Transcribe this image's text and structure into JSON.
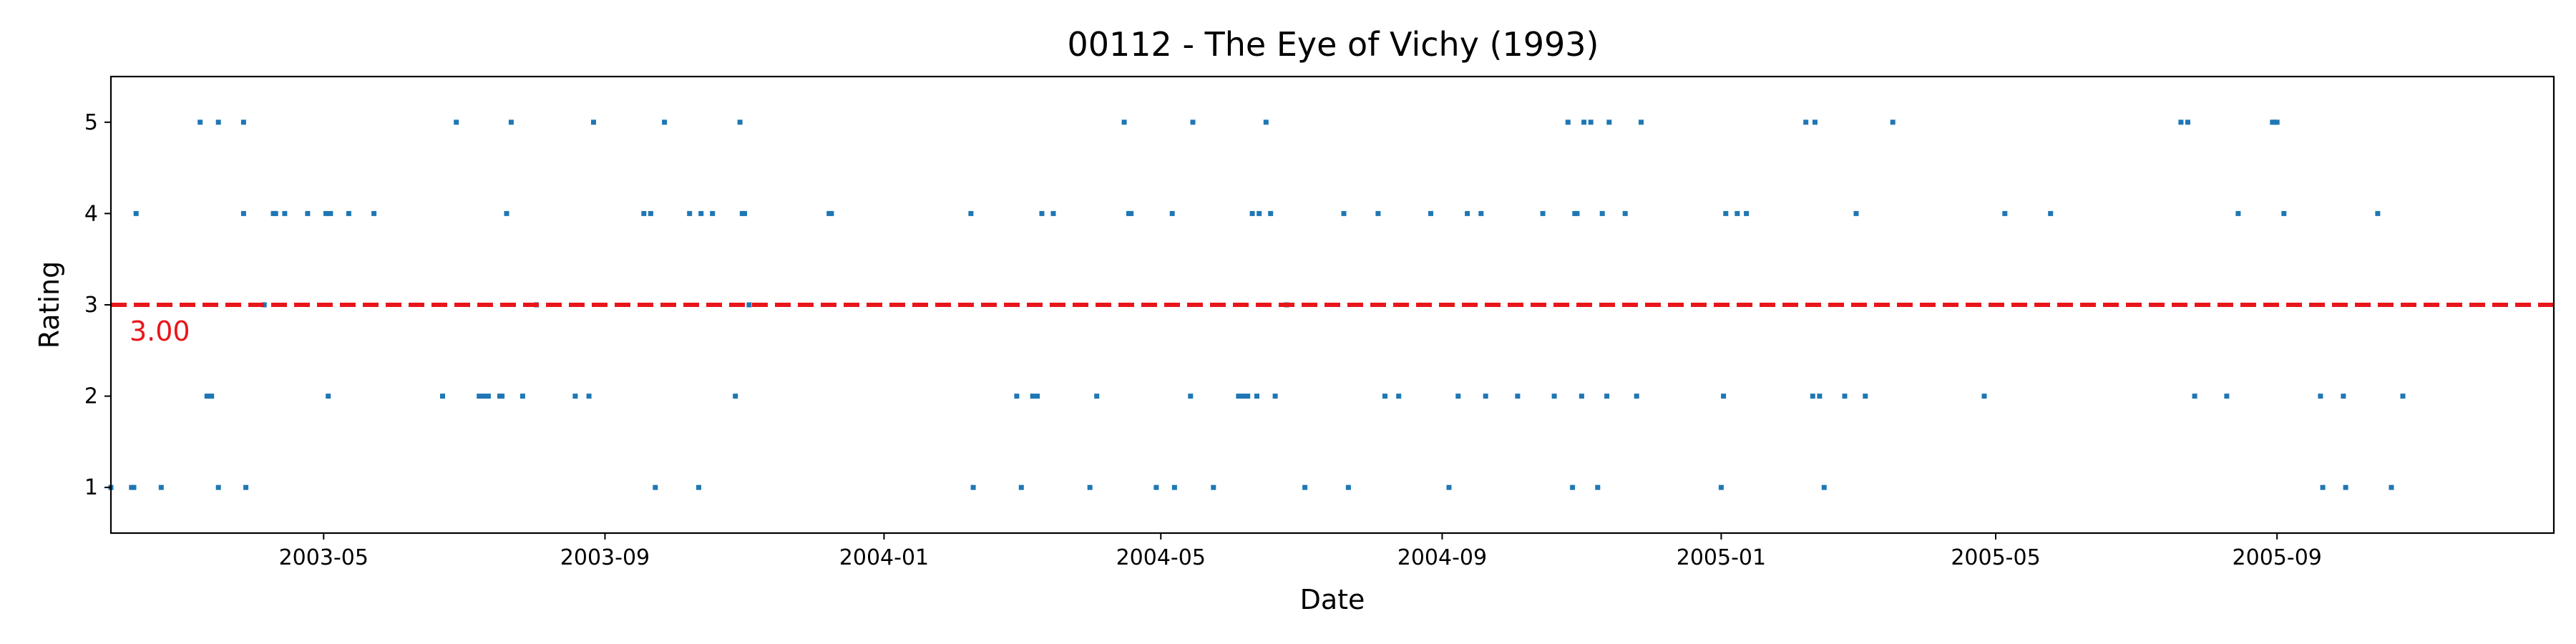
{
  "chart_data": {
    "type": "scatter",
    "title": "00112 - The Eye of Vichy (1993)",
    "xlabel": "Date",
    "ylabel": "Rating",
    "xlim": [
      "2003-01-28",
      "2005-12-31"
    ],
    "ylim": [
      0.5,
      5.5
    ],
    "x_ticks": [
      "2003-05-01",
      "2003-09-01",
      "2004-01-01",
      "2004-05-01",
      "2004-09-01",
      "2005-01-01",
      "2005-05-01",
      "2005-09-01"
    ],
    "x_tick_labels": [
      "2003-05",
      "2003-09",
      "2004-01",
      "2004-05",
      "2004-09",
      "2005-01",
      "2005-05",
      "2005-09"
    ],
    "y_ticks": [
      1,
      2,
      3,
      4,
      5
    ],
    "y_tick_labels": [
      "1",
      "2",
      "3",
      "4",
      "5"
    ],
    "grid": false,
    "point_color": "#1f77b4",
    "reference_line": {
      "y": 3.0,
      "label": "3.00",
      "color": "#e8161b",
      "style": "dashed"
    },
    "points": [
      {
        "x": "2003-01-28",
        "y": 1
      },
      {
        "x": "2003-02-06",
        "y": 1
      },
      {
        "x": "2003-02-07",
        "y": 1
      },
      {
        "x": "2003-02-08",
        "y": 4
      },
      {
        "x": "2003-02-19",
        "y": 1
      },
      {
        "x": "2003-03-08",
        "y": 5
      },
      {
        "x": "2003-03-11",
        "y": 2
      },
      {
        "x": "2003-03-12",
        "y": 2
      },
      {
        "x": "2003-03-13",
        "y": 2
      },
      {
        "x": "2003-03-16",
        "y": 1
      },
      {
        "x": "2003-03-16",
        "y": 5
      },
      {
        "x": "2003-03-27",
        "y": 5
      },
      {
        "x": "2003-03-27",
        "y": 4
      },
      {
        "x": "2003-03-28",
        "y": 1
      },
      {
        "x": "2003-04-05",
        "y": 3
      },
      {
        "x": "2003-04-09",
        "y": 4
      },
      {
        "x": "2003-04-10",
        "y": 4
      },
      {
        "x": "2003-04-14",
        "y": 4
      },
      {
        "x": "2003-04-24",
        "y": 4
      },
      {
        "x": "2003-05-02",
        "y": 4
      },
      {
        "x": "2003-05-03",
        "y": 2
      },
      {
        "x": "2003-05-04",
        "y": 4
      },
      {
        "x": "2003-05-12",
        "y": 4
      },
      {
        "x": "2003-05-23",
        "y": 4
      },
      {
        "x": "2003-06-22",
        "y": 2
      },
      {
        "x": "2003-06-28",
        "y": 5
      },
      {
        "x": "2003-07-08",
        "y": 2
      },
      {
        "x": "2003-07-10",
        "y": 2
      },
      {
        "x": "2003-07-12",
        "y": 2
      },
      {
        "x": "2003-07-17",
        "y": 2
      },
      {
        "x": "2003-07-18",
        "y": 2
      },
      {
        "x": "2003-07-20",
        "y": 4
      },
      {
        "x": "2003-07-22",
        "y": 5
      },
      {
        "x": "2003-07-27",
        "y": 2
      },
      {
        "x": "2003-08-02",
        "y": 3
      },
      {
        "x": "2003-08-19",
        "y": 2
      },
      {
        "x": "2003-08-25",
        "y": 2
      },
      {
        "x": "2003-08-27",
        "y": 5
      },
      {
        "x": "2003-09-18",
        "y": 4
      },
      {
        "x": "2003-09-21",
        "y": 4
      },
      {
        "x": "2003-09-23",
        "y": 1
      },
      {
        "x": "2003-09-27",
        "y": 5
      },
      {
        "x": "2003-10-08",
        "y": 4
      },
      {
        "x": "2003-10-12",
        "y": 1
      },
      {
        "x": "2003-10-13",
        "y": 4
      },
      {
        "x": "2003-10-18",
        "y": 4
      },
      {
        "x": "2003-10-28",
        "y": 2
      },
      {
        "x": "2003-10-30",
        "y": 5
      },
      {
        "x": "2003-10-31",
        "y": 4
      },
      {
        "x": "2003-11-01",
        "y": 4
      },
      {
        "x": "2003-11-03",
        "y": 3
      },
      {
        "x": "2003-12-08",
        "y": 4
      },
      {
        "x": "2003-12-09",
        "y": 4
      },
      {
        "x": "2004-02-08",
        "y": 4
      },
      {
        "x": "2004-02-09",
        "y": 1
      },
      {
        "x": "2004-02-28",
        "y": 2
      },
      {
        "x": "2004-03-01",
        "y": 1
      },
      {
        "x": "2004-03-06",
        "y": 2
      },
      {
        "x": "2004-03-08",
        "y": 2
      },
      {
        "x": "2004-03-10",
        "y": 4
      },
      {
        "x": "2004-03-15",
        "y": 4
      },
      {
        "x": "2004-03-31",
        "y": 1
      },
      {
        "x": "2004-04-03",
        "y": 2
      },
      {
        "x": "2004-04-15",
        "y": 5
      },
      {
        "x": "2004-04-17",
        "y": 4
      },
      {
        "x": "2004-04-18",
        "y": 4
      },
      {
        "x": "2004-04-29",
        "y": 1
      },
      {
        "x": "2004-05-06",
        "y": 4
      },
      {
        "x": "2004-05-07",
        "y": 1
      },
      {
        "x": "2004-05-14",
        "y": 2
      },
      {
        "x": "2004-05-15",
        "y": 5
      },
      {
        "x": "2004-05-24",
        "y": 1
      },
      {
        "x": "2004-06-04",
        "y": 2
      },
      {
        "x": "2004-06-06",
        "y": 2
      },
      {
        "x": "2004-06-08",
        "y": 2
      },
      {
        "x": "2004-06-10",
        "y": 4
      },
      {
        "x": "2004-06-12",
        "y": 2
      },
      {
        "x": "2004-06-13",
        "y": 4
      },
      {
        "x": "2004-06-16",
        "y": 5
      },
      {
        "x": "2004-06-18",
        "y": 4
      },
      {
        "x": "2004-06-20",
        "y": 2
      },
      {
        "x": "2004-06-25",
        "y": 3
      },
      {
        "x": "2004-07-03",
        "y": 1
      },
      {
        "x": "2004-07-20",
        "y": 4
      },
      {
        "x": "2004-07-22",
        "y": 1
      },
      {
        "x": "2004-08-04",
        "y": 4
      },
      {
        "x": "2004-08-07",
        "y": 2
      },
      {
        "x": "2004-08-13",
        "y": 2
      },
      {
        "x": "2004-08-27",
        "y": 4
      },
      {
        "x": "2004-09-04",
        "y": 1
      },
      {
        "x": "2004-09-08",
        "y": 2
      },
      {
        "x": "2004-09-12",
        "y": 4
      },
      {
        "x": "2004-09-18",
        "y": 4
      },
      {
        "x": "2004-09-20",
        "y": 2
      },
      {
        "x": "2004-10-04",
        "y": 2
      },
      {
        "x": "2004-10-15",
        "y": 4
      },
      {
        "x": "2004-10-20",
        "y": 2
      },
      {
        "x": "2004-10-26",
        "y": 5
      },
      {
        "x": "2004-10-28",
        "y": 1
      },
      {
        "x": "2004-10-29",
        "y": 4
      },
      {
        "x": "2004-10-30",
        "y": 4
      },
      {
        "x": "2004-11-01",
        "y": 2
      },
      {
        "x": "2004-11-02",
        "y": 5
      },
      {
        "x": "2004-11-05",
        "y": 5
      },
      {
        "x": "2004-11-08",
        "y": 1
      },
      {
        "x": "2004-11-10",
        "y": 4
      },
      {
        "x": "2004-11-12",
        "y": 2
      },
      {
        "x": "2004-11-13",
        "y": 5
      },
      {
        "x": "2004-11-20",
        "y": 4
      },
      {
        "x": "2004-11-25",
        "y": 2
      },
      {
        "x": "2004-11-27",
        "y": 5
      },
      {
        "x": "2005-01-01",
        "y": 1
      },
      {
        "x": "2005-01-02",
        "y": 2
      },
      {
        "x": "2005-01-03",
        "y": 4
      },
      {
        "x": "2005-01-08",
        "y": 4
      },
      {
        "x": "2005-01-12",
        "y": 4
      },
      {
        "x": "2005-02-07",
        "y": 5
      },
      {
        "x": "2005-02-10",
        "y": 2
      },
      {
        "x": "2005-02-11",
        "y": 5
      },
      {
        "x": "2005-02-13",
        "y": 2
      },
      {
        "x": "2005-02-15",
        "y": 1
      },
      {
        "x": "2005-02-24",
        "y": 2
      },
      {
        "x": "2005-03-01",
        "y": 4
      },
      {
        "x": "2005-03-05",
        "y": 2
      },
      {
        "x": "2005-03-17",
        "y": 5
      },
      {
        "x": "2005-04-26",
        "y": 2
      },
      {
        "x": "2005-05-05",
        "y": 4
      },
      {
        "x": "2005-05-25",
        "y": 4
      },
      {
        "x": "2005-07-21",
        "y": 5
      },
      {
        "x": "2005-07-24",
        "y": 5
      },
      {
        "x": "2005-07-27",
        "y": 2
      },
      {
        "x": "2005-08-10",
        "y": 2
      },
      {
        "x": "2005-08-15",
        "y": 4
      },
      {
        "x": "2005-08-30",
        "y": 5
      },
      {
        "x": "2005-08-31",
        "y": 5
      },
      {
        "x": "2005-09-01",
        "y": 5
      },
      {
        "x": "2005-09-04",
        "y": 4
      },
      {
        "x": "2005-09-20",
        "y": 2
      },
      {
        "x": "2005-09-21",
        "y": 1
      },
      {
        "x": "2005-09-30",
        "y": 2
      },
      {
        "x": "2005-10-01",
        "y": 1
      },
      {
        "x": "2005-10-15",
        "y": 4
      },
      {
        "x": "2005-10-21",
        "y": 1
      },
      {
        "x": "2005-10-26",
        "y": 2
      }
    ]
  }
}
